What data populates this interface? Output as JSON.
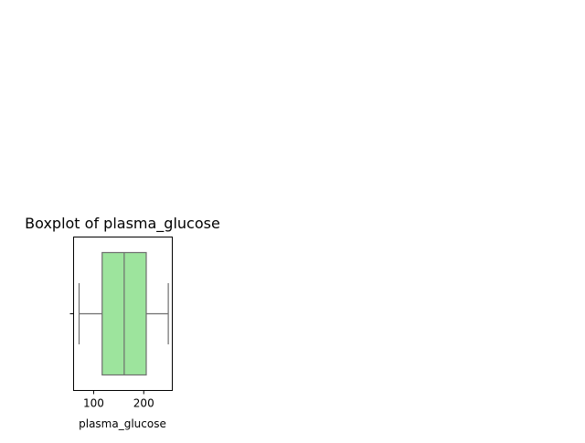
{
  "chart_data": {
    "type": "box",
    "title": "Boxplot of plasma_glucose",
    "xlabel": "plasma_glucose",
    "ylabel": "",
    "orientation": "horizontal",
    "xlim": [
      60,
      257
    ],
    "xticks": [
      100,
      200
    ],
    "yticks": [
      ""
    ],
    "series": [
      {
        "whisker_low": 71,
        "q1": 117,
        "median": 161,
        "q3": 205,
        "whisker_high": 249
      }
    ],
    "colors": {
      "box_fill": "#9de49d",
      "box_edge": "#6e6e6e",
      "axis": "#000000"
    },
    "grid": false,
    "legend": "none"
  }
}
